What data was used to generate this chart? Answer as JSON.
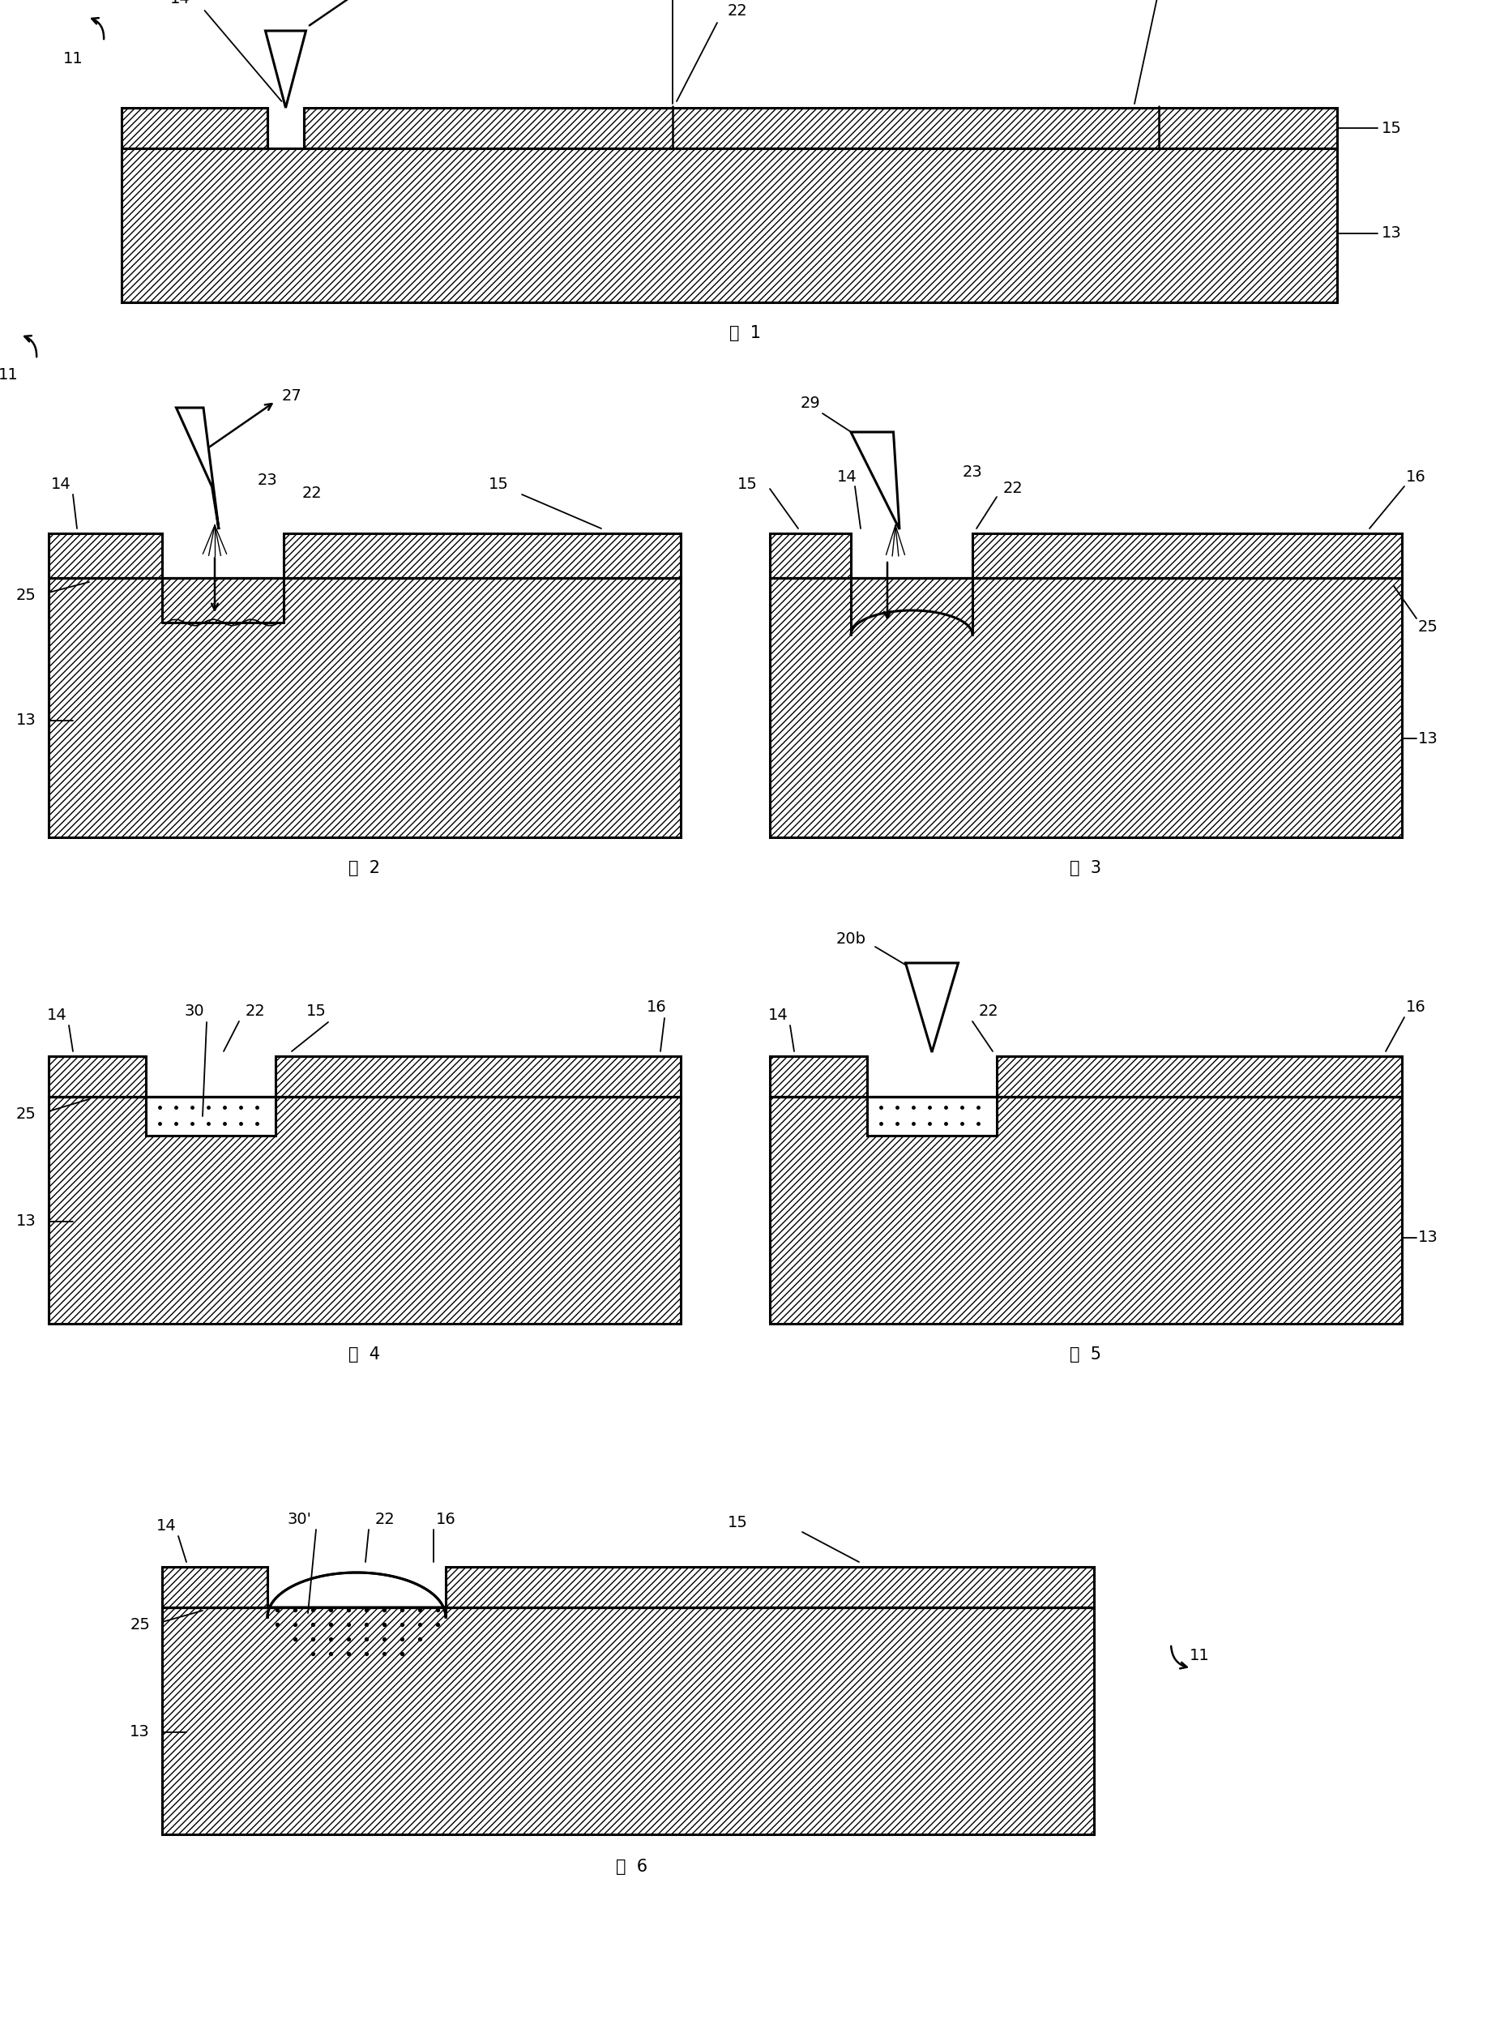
{
  "bg": "#ffffff",
  "fig_captions": [
    "图  1",
    "图  2",
    "图  3",
    "图  4",
    "图  5",
    "图  6"
  ]
}
